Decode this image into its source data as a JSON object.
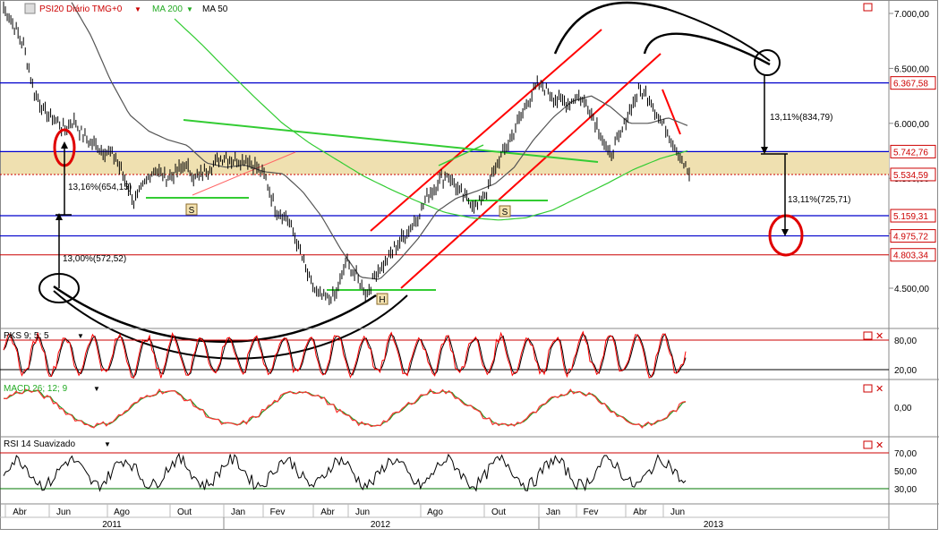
{
  "header": {
    "symbol": "PSI20 Diário TMG+0",
    "ma200_label": "MA 200",
    "ma50_label": "MA 50"
  },
  "colors": {
    "price": "#000000",
    "ma200": "#33cc33",
    "ma50": "#555555",
    "support_band": "#efe0b0",
    "blue_level": "#0000cc",
    "red_level": "#cc0000",
    "trendline_red": "#ff0000",
    "neckline_green": "#33cc33",
    "stoch_k": "#ff0000",
    "stoch_d": "#000000",
    "macd": "#ff3333",
    "signal": "#229922"
  },
  "chart_data": {
    "type": "line",
    "title": "PSI20 Diário",
    "price_axis": {
      "ticks": [
        4500,
        5000,
        5500,
        6000,
        6500,
        7000
      ],
      "tick_labels": [
        "4.500,00",
        "5.000,00",
        "5.500,00",
        "6.000,00",
        "6.500,00",
        "7.000,00"
      ],
      "ylim": [
        4200,
        7100
      ]
    },
    "levels": [
      {
        "value": 6367.58,
        "label": "6.367,58",
        "color": "blue"
      },
      {
        "value": 5742.76,
        "label": "5.742,76",
        "color": "blue"
      },
      {
        "value": 5534.59,
        "label": "5.534,59",
        "color": "red-dotted"
      },
      {
        "value": 5159.31,
        "label": "5.159,31",
        "color": "blue"
      },
      {
        "value": 4975.72,
        "label": "4.975,72",
        "color": "blue"
      },
      {
        "value": 4803.34,
        "label": "4.803,34",
        "color": "red"
      }
    ],
    "annotations": [
      {
        "text": "13,16%(654,15)"
      },
      {
        "text": "13,00%(572,52)"
      },
      {
        "text": "13,11%(834,79)"
      },
      {
        "text": "13,11%(725,71)"
      },
      {
        "text": "S"
      },
      {
        "text": "S"
      },
      {
        "text": "H"
      }
    ],
    "x_axis": {
      "months": [
        "Abr",
        "Jun",
        "Ago",
        "Out",
        "Jan",
        "Fev",
        "Abr",
        "Jun",
        "Ago",
        "Out",
        "Jan",
        "Fev",
        "Abr",
        "Jun"
      ],
      "years": [
        "2011",
        "2012",
        "2013"
      ]
    },
    "series": [
      {
        "name": "PSI20",
        "values": [
          7050,
          6900,
          6700,
          6300,
          6100,
          6050,
          5950,
          6020,
          5880,
          5800,
          5750,
          5700,
          5500,
          5280,
          5450,
          5600,
          5500,
          5550,
          5620,
          5500,
          5560,
          5650,
          5700,
          5650,
          5680,
          5620,
          5500,
          5200,
          5150,
          4950,
          4650,
          4450,
          4400,
          4450,
          4750,
          4600,
          4450,
          4650,
          4750,
          4900,
          5000,
          5150,
          5320,
          5450,
          5550,
          5400,
          5300,
          5250,
          5400,
          5650,
          5800,
          6000,
          6200,
          6350,
          6300,
          6200,
          6180,
          6250,
          6150,
          5950,
          5700,
          5850,
          6100,
          6300,
          6250,
          6050,
          5900,
          5720,
          5534
        ]
      },
      {
        "name": "MA 200",
        "values": [
          6950,
          6720,
          6470,
          6230,
          6000,
          5820,
          5670,
          5520,
          5400,
          5290,
          5190,
          5140,
          5120,
          5140,
          5210,
          5330,
          5450,
          5580,
          5680,
          5750
        ]
      },
      {
        "name": "MA 50",
        "values": [
          7100,
          6800,
          6400,
          6080,
          5930,
          5850,
          5800,
          5640,
          5600,
          5620,
          5560,
          5540,
          5380,
          5150,
          4850,
          4600,
          4580,
          4750,
          4950,
          5200,
          5320,
          5380,
          5450,
          5600,
          5850,
          6050,
          6200,
          6250,
          6150,
          6000,
          6000,
          6050,
          5980
        ]
      }
    ],
    "panels": [
      {
        "name": "PKS 9; 5; 5",
        "ticks": [
          80,
          20
        ],
        "tick_labels": [
          "80,00",
          "20,00"
        ],
        "ylim": [
          0,
          100
        ]
      },
      {
        "name": "MACD 26; 12; 9",
        "ticks": [
          0
        ],
        "tick_labels": [
          "0,00"
        ]
      },
      {
        "name": "RSI 14 Suavizado",
        "ticks": [
          70,
          50,
          30
        ],
        "tick_labels": [
          "70,00",
          "50,00",
          "30,00"
        ],
        "ylim": [
          15,
          85
        ]
      }
    ]
  }
}
